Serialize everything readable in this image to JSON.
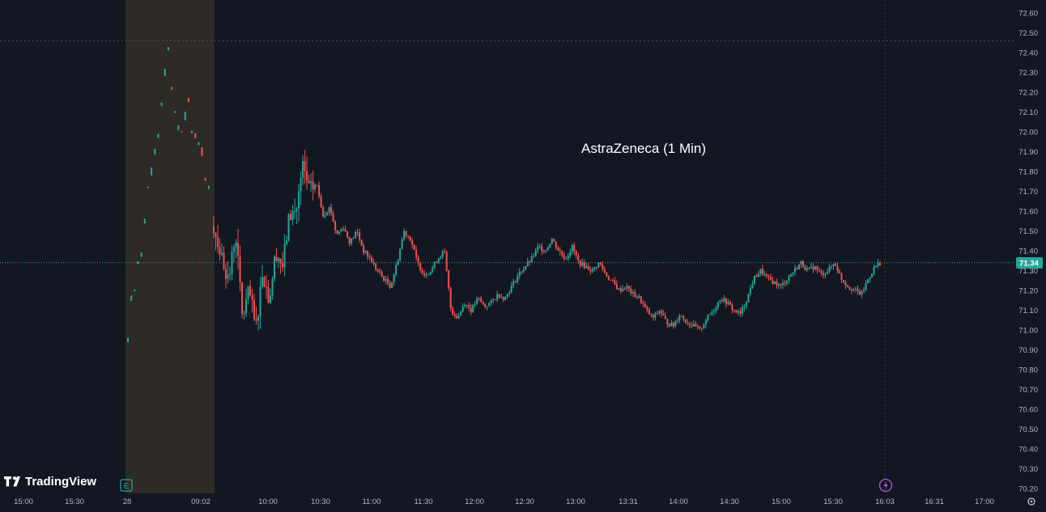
{
  "chart_data": {
    "type": "candlestick",
    "title": "AstraZeneca (1 Min)",
    "ylim": [
      70.16,
      72.66
    ],
    "y_ticks": [
      "72.60",
      "72.50",
      "72.40",
      "72.30",
      "72.20",
      "72.10",
      "72.00",
      "71.90",
      "71.80",
      "71.70",
      "71.60",
      "71.50",
      "71.40",
      "71.30",
      "71.20",
      "71.10",
      "71.00",
      "70.90",
      "70.80",
      "70.70",
      "70.60",
      "70.50",
      "70.40",
      "70.30",
      "70.20"
    ],
    "x_ticks": [
      "15:00",
      "15:30",
      "28",
      "09:02",
      "10:00",
      "10:30",
      "11:00",
      "11:30",
      "12:00",
      "12:30",
      "13:00",
      "13:31",
      "14:00",
      "14:30",
      "15:00",
      "15:30",
      "16:03",
      "16:31",
      "17:00"
    ],
    "last_price": "71.34",
    "high_line": 72.46,
    "premarket_points": [
      [
        0.0,
        70.95
      ],
      [
        0.04,
        71.16
      ],
      [
        0.08,
        71.2
      ],
      [
        0.12,
        71.34
      ],
      [
        0.16,
        71.38
      ],
      [
        0.2,
        71.55
      ],
      [
        0.24,
        71.72
      ],
      [
        0.28,
        71.8
      ],
      [
        0.32,
        71.9
      ],
      [
        0.36,
        71.98
      ],
      [
        0.4,
        72.14
      ],
      [
        0.44,
        72.3
      ],
      [
        0.48,
        72.42
      ],
      [
        0.52,
        72.22
      ],
      [
        0.56,
        72.1
      ],
      [
        0.6,
        72.02
      ],
      [
        0.64,
        72.0
      ],
      [
        0.68,
        72.08
      ],
      [
        0.72,
        72.16
      ],
      [
        0.76,
        72.0
      ],
      [
        0.8,
        71.98
      ],
      [
        0.84,
        71.94
      ],
      [
        0.88,
        71.9
      ],
      [
        0.92,
        71.76
      ],
      [
        0.96,
        71.72
      ]
    ],
    "price_path": [
      [
        0.0,
        71.52
      ],
      [
        0.01,
        71.36
      ],
      [
        0.018,
        71.25
      ],
      [
        0.026,
        71.5
      ],
      [
        0.034,
        71.06
      ],
      [
        0.042,
        71.2
      ],
      [
        0.05,
        71.0
      ],
      [
        0.058,
        71.3
      ],
      [
        0.066,
        71.15
      ],
      [
        0.074,
        71.4
      ],
      [
        0.082,
        71.32
      ],
      [
        0.09,
        71.58
      ],
      [
        0.098,
        71.6
      ],
      [
        0.106,
        71.82
      ],
      [
        0.114,
        71.7
      ],
      [
        0.122,
        71.74
      ],
      [
        0.13,
        71.58
      ],
      [
        0.138,
        71.62
      ],
      [
        0.146,
        71.48
      ],
      [
        0.154,
        71.52
      ],
      [
        0.162,
        71.44
      ],
      [
        0.17,
        71.5
      ],
      [
        0.178,
        71.4
      ],
      [
        0.186,
        71.36
      ],
      [
        0.194,
        71.3
      ],
      [
        0.202,
        71.26
      ],
      [
        0.21,
        71.22
      ],
      [
        0.218,
        71.34
      ],
      [
        0.226,
        71.5
      ],
      [
        0.234,
        71.46
      ],
      [
        0.242,
        71.34
      ],
      [
        0.25,
        71.28
      ],
      [
        0.258,
        71.3
      ],
      [
        0.266,
        71.36
      ],
      [
        0.274,
        71.4
      ],
      [
        0.282,
        71.1
      ],
      [
        0.29,
        71.06
      ],
      [
        0.298,
        71.14
      ],
      [
        0.306,
        71.1
      ],
      [
        0.314,
        71.16
      ],
      [
        0.322,
        71.12
      ],
      [
        0.33,
        71.14
      ],
      [
        0.338,
        71.18
      ],
      [
        0.346,
        71.16
      ],
      [
        0.354,
        71.22
      ],
      [
        0.362,
        71.28
      ],
      [
        0.37,
        71.32
      ],
      [
        0.378,
        71.36
      ],
      [
        0.386,
        71.42
      ],
      [
        0.394,
        71.4
      ],
      [
        0.402,
        71.46
      ],
      [
        0.41,
        71.4
      ],
      [
        0.418,
        71.36
      ],
      [
        0.426,
        71.42
      ],
      [
        0.434,
        71.34
      ],
      [
        0.442,
        71.32
      ],
      [
        0.45,
        71.3
      ],
      [
        0.458,
        71.34
      ],
      [
        0.466,
        71.28
      ],
      [
        0.474,
        71.24
      ],
      [
        0.482,
        71.2
      ],
      [
        0.49,
        71.22
      ],
      [
        0.498,
        71.18
      ],
      [
        0.506,
        71.16
      ],
      [
        0.514,
        71.1
      ],
      [
        0.522,
        71.06
      ],
      [
        0.53,
        71.1
      ],
      [
        0.538,
        71.04
      ],
      [
        0.546,
        71.02
      ],
      [
        0.554,
        71.08
      ],
      [
        0.562,
        71.04
      ],
      [
        0.57,
        71.02
      ],
      [
        0.578,
        71.0
      ],
      [
        0.586,
        71.06
      ],
      [
        0.594,
        71.1
      ],
      [
        0.602,
        71.16
      ],
      [
        0.61,
        71.14
      ],
      [
        0.618,
        71.1
      ],
      [
        0.626,
        71.08
      ],
      [
        0.634,
        71.16
      ],
      [
        0.642,
        71.26
      ],
      [
        0.65,
        71.3
      ],
      [
        0.658,
        71.26
      ],
      [
        0.666,
        71.24
      ],
      [
        0.674,
        71.22
      ],
      [
        0.682,
        71.26
      ],
      [
        0.69,
        71.3
      ],
      [
        0.698,
        71.34
      ],
      [
        0.706,
        71.3
      ],
      [
        0.714,
        71.32
      ],
      [
        0.722,
        71.28
      ],
      [
        0.73,
        71.3
      ],
      [
        0.738,
        71.34
      ],
      [
        0.746,
        71.26
      ],
      [
        0.754,
        71.22
      ],
      [
        0.762,
        71.2
      ],
      [
        0.77,
        71.18
      ],
      [
        0.778,
        71.26
      ],
      [
        0.786,
        71.32
      ],
      [
        0.792,
        71.34
      ]
    ]
  },
  "brand": {
    "name": "TradingView"
  },
  "markers": {
    "earnings": "E"
  },
  "colors": {
    "up": "#26a69a",
    "down": "#ef5350",
    "background": "#131722",
    "premarket": "#2e2a25",
    "grid": "#1e222d"
  }
}
